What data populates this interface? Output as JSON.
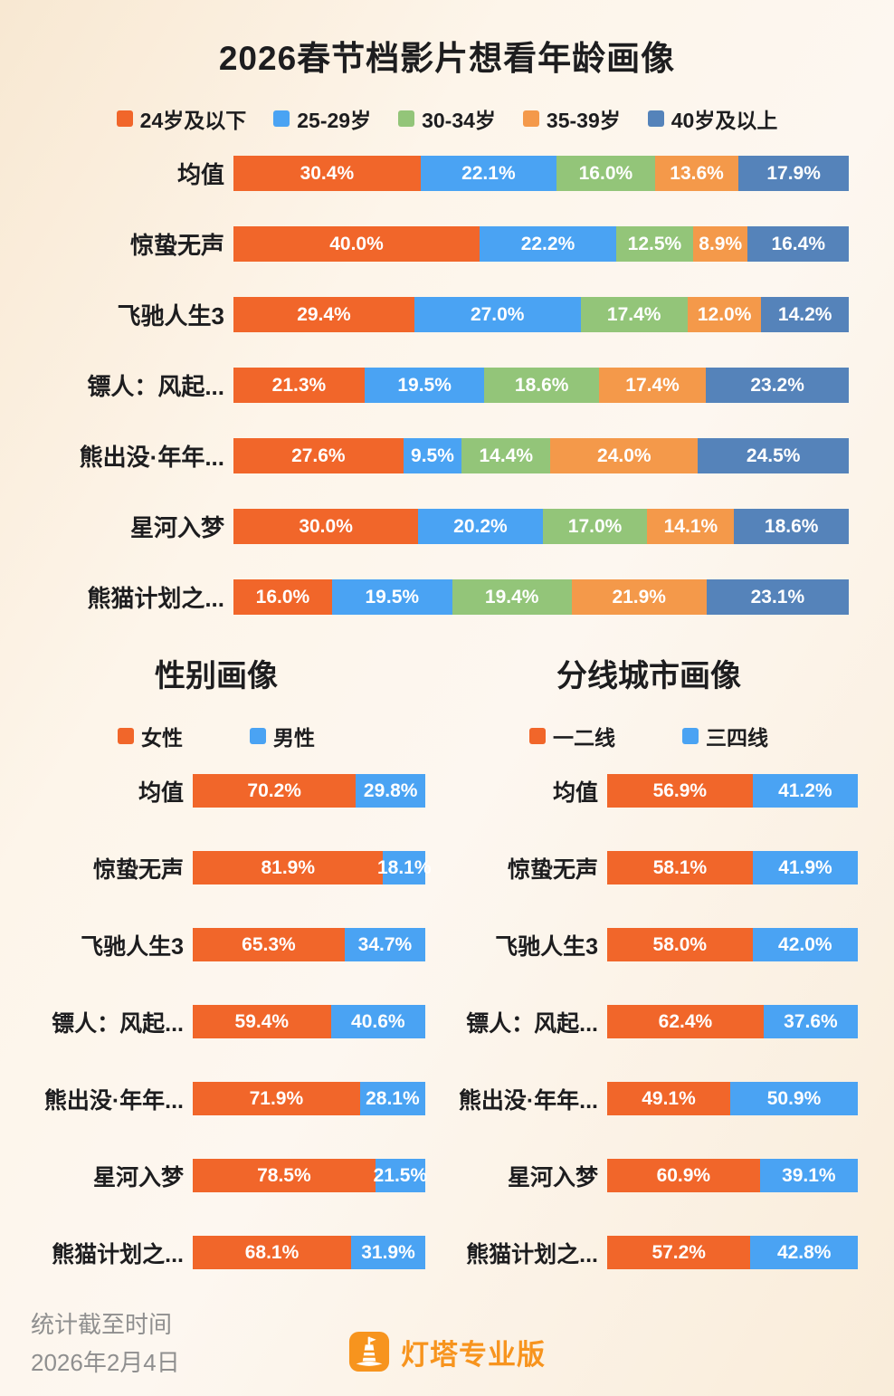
{
  "footer": {
    "stat_label": "统计截至时间",
    "stat_date": "2026年2月4日",
    "brand": "灯塔专业版"
  },
  "colors": {
    "orange": "#f1662a",
    "blue": "#4aa3f3",
    "green": "#93c579",
    "light_orange": "#f4994a",
    "steel_blue": "#5583ba",
    "brand_orange": "#f7941e",
    "background": "#fdf4e8",
    "footer_text": "#8f8f8f"
  },
  "chart_data": [
    {
      "type": "bar",
      "stacked": true,
      "orientation": "horizontal",
      "title": "2026春节档影片想看年龄画像",
      "unit": "%",
      "xlim": [
        0,
        100
      ],
      "legend_position": "top",
      "value_labels": true,
      "categories": [
        "均值",
        "惊蛰无声",
        "飞驰人生3",
        "镖人：风起...",
        "熊出没·年年...",
        "星河入梦",
        "熊猫计划之..."
      ],
      "series": [
        {
          "name": "24岁及以下",
          "color": "#f1662a",
          "values": [
            30.4,
            40.0,
            29.4,
            21.3,
            27.6,
            30.0,
            16.0
          ]
        },
        {
          "name": "25-29岁",
          "color": "#4aa3f3",
          "values": [
            22.1,
            22.2,
            27.0,
            19.5,
            9.5,
            20.2,
            19.5
          ]
        },
        {
          "name": "30-34岁",
          "color": "#93c579",
          "values": [
            16.0,
            12.5,
            17.4,
            18.6,
            14.4,
            17.0,
            19.4
          ]
        },
        {
          "name": "35-39岁",
          "color": "#f4994a",
          "values": [
            13.6,
            8.9,
            12.0,
            17.4,
            24.0,
            14.1,
            21.9
          ]
        },
        {
          "name": "40岁及以上",
          "color": "#5583ba",
          "values": [
            17.9,
            16.4,
            14.2,
            23.2,
            24.5,
            18.6,
            23.1
          ]
        }
      ]
    },
    {
      "type": "bar",
      "stacked": true,
      "orientation": "horizontal",
      "title": "性别画像",
      "unit": "%",
      "xlim": [
        0,
        100
      ],
      "legend_position": "top",
      "value_labels": true,
      "categories": [
        "均值",
        "惊蛰无声",
        "飞驰人生3",
        "镖人：风起...",
        "熊出没·年年...",
        "星河入梦",
        "熊猫计划之..."
      ],
      "series": [
        {
          "name": "女性",
          "color": "#f1662a",
          "values": [
            70.2,
            81.9,
            65.3,
            59.4,
            71.9,
            78.5,
            68.1
          ]
        },
        {
          "name": "男性",
          "color": "#4aa3f3",
          "values": [
            29.8,
            18.1,
            34.7,
            40.6,
            28.1,
            21.5,
            31.9
          ]
        }
      ]
    },
    {
      "type": "bar",
      "stacked": true,
      "orientation": "horizontal",
      "title": "分线城市画像",
      "unit": "%",
      "xlim": [
        0,
        100
      ],
      "legend_position": "top",
      "value_labels": true,
      "categories": [
        "均值",
        "惊蛰无声",
        "飞驰人生3",
        "镖人：风起...",
        "熊出没·年年...",
        "星河入梦",
        "熊猫计划之..."
      ],
      "series": [
        {
          "name": "一二线",
          "color": "#f1662a",
          "values": [
            56.9,
            58.1,
            58.0,
            62.4,
            49.1,
            60.9,
            57.2
          ]
        },
        {
          "name": "三四线",
          "color": "#4aa3f3",
          "values": [
            41.2,
            41.9,
            42.0,
            37.6,
            50.9,
            39.1,
            42.8
          ]
        }
      ]
    }
  ]
}
